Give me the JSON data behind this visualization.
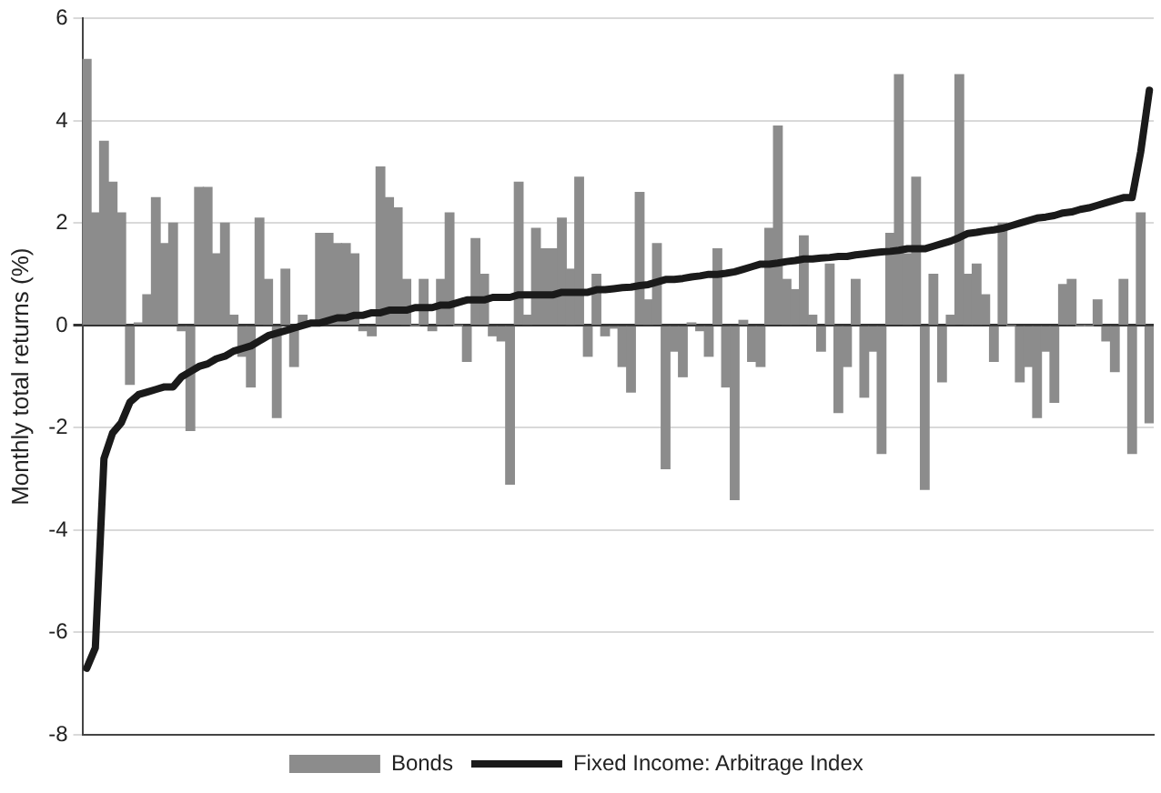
{
  "chart_data": {
    "type": "bar",
    "ylabel": "Monthly total returns (%)",
    "categories": [
      null,
      null,
      null,
      null,
      null,
      null,
      null,
      null,
      null,
      null,
      null,
      null,
      null,
      null,
      null,
      null,
      null,
      null,
      null,
      null,
      null,
      null,
      null,
      null,
      null,
      null,
      null,
      null,
      null,
      null,
      null,
      null,
      null,
      null,
      null,
      null,
      null,
      null,
      null,
      null,
      null,
      null,
      null,
      null,
      null,
      null,
      null,
      null,
      null,
      null,
      null,
      null,
      null,
      null,
      null,
      null,
      null,
      null,
      null,
      null,
      null,
      null,
      null,
      null,
      null,
      null,
      null,
      null,
      null,
      null,
      null,
      null,
      null,
      null,
      null,
      null,
      null,
      null,
      null,
      null,
      null,
      null,
      null,
      null,
      null,
      null,
      null,
      null,
      null,
      null,
      null,
      null,
      null,
      null,
      null,
      null,
      null,
      null,
      null,
      null,
      null,
      null,
      null,
      null,
      null,
      null,
      null,
      null,
      null,
      null,
      null,
      null,
      null,
      null,
      null,
      null,
      null,
      null,
      null,
      null,
      null,
      null,
      null,
      null
    ],
    "series": [
      {
        "name": "Bonds",
        "color": "#8c8c8c",
        "values": [
          5.2,
          2.2,
          3.6,
          2.8,
          2.2,
          -1.15,
          0.05,
          0.6,
          2.5,
          1.6,
          2.0,
          -0.1,
          -2.05,
          2.7,
          2.7,
          1.4,
          2.0,
          0.2,
          -0.6,
          -1.2,
          2.1,
          0.9,
          -1.8,
          1.1,
          -0.8,
          0.2,
          null,
          1.8,
          1.8,
          1.6,
          1.6,
          1.4,
          -0.1,
          -0.2,
          3.1,
          2.5,
          2.3,
          0.9,
          0.0,
          0.9,
          -0.1,
          0.9,
          2.2,
          0.0,
          -0.7,
          1.7,
          1.0,
          -0.2,
          -0.3,
          -3.1,
          2.8,
          0.2,
          1.9,
          1.5,
          1.5,
          2.1,
          1.1,
          2.9,
          -0.6,
          1.0,
          -0.2,
          -0.05,
          -0.8,
          -1.3,
          2.6,
          0.5,
          1.6,
          -2.8,
          -0.5,
          -1.0,
          0.05,
          -0.1,
          -0.6,
          1.5,
          -1.2,
          -3.4,
          0.1,
          -0.7,
          -0.8,
          1.9,
          3.9,
          0.9,
          0.7,
          1.75,
          0.2,
          -0.5,
          1.2,
          -1.7,
          -0.8,
          0.9,
          -1.4,
          -0.5,
          -2.5,
          1.8,
          4.9,
          1.4,
          2.9,
          -3.2,
          1.0,
          -1.1,
          0.2,
          4.9,
          1.0,
          1.2,
          0.6,
          -0.7,
          2.0,
          0.0,
          -1.1,
          -0.8,
          -1.8,
          -0.5,
          -1.5,
          0.8,
          0.9,
          0.0,
          0.0,
          0.5,
          -0.3,
          -0.9,
          0.9,
          -2.5,
          2.2,
          -1.9
        ]
      },
      {
        "name": "Fixed Income: Arbitrage Index",
        "type": "line",
        "color": "#1a1a1a",
        "values": [
          -6.7,
          -6.3,
          -2.6,
          -2.1,
          -1.9,
          -1.5,
          -1.35,
          -1.3,
          -1.25,
          -1.2,
          -1.2,
          -1.0,
          -0.9,
          -0.8,
          -0.75,
          -0.65,
          -0.6,
          -0.5,
          -0.45,
          -0.4,
          -0.3,
          -0.2,
          -0.15,
          -0.1,
          -0.05,
          0.0,
          0.05,
          0.05,
          0.1,
          0.15,
          0.15,
          0.2,
          0.2,
          0.25,
          0.25,
          0.3,
          0.3,
          0.3,
          0.35,
          0.35,
          0.35,
          0.4,
          0.4,
          0.45,
          0.5,
          0.5,
          0.5,
          0.55,
          0.55,
          0.55,
          0.6,
          0.6,
          0.6,
          0.6,
          0.6,
          0.65,
          0.65,
          0.65,
          0.65,
          0.7,
          0.7,
          0.72,
          0.74,
          0.75,
          0.78,
          0.8,
          0.85,
          0.9,
          0.9,
          0.92,
          0.95,
          0.97,
          1.0,
          1.0,
          1.02,
          1.05,
          1.1,
          1.15,
          1.2,
          1.2,
          1.22,
          1.25,
          1.27,
          1.3,
          1.3,
          1.32,
          1.33,
          1.35,
          1.35,
          1.38,
          1.4,
          1.42,
          1.44,
          1.45,
          1.47,
          1.5,
          1.5,
          1.5,
          1.55,
          1.6,
          1.65,
          1.72,
          1.8,
          1.82,
          1.85,
          1.87,
          1.9,
          1.95,
          2.0,
          2.05,
          2.1,
          2.12,
          2.15,
          2.2,
          2.22,
          2.27,
          2.3,
          2.35,
          2.4,
          2.45,
          2.5,
          2.5,
          3.4,
          4.6
        ]
      }
    ],
    "ylim": [
      -8,
      6
    ],
    "yticks": [
      -8,
      -6,
      -4,
      -2,
      0,
      2,
      4,
      6
    ],
    "grid": "y",
    "legend": "bottom",
    "tick_labels": "y"
  }
}
